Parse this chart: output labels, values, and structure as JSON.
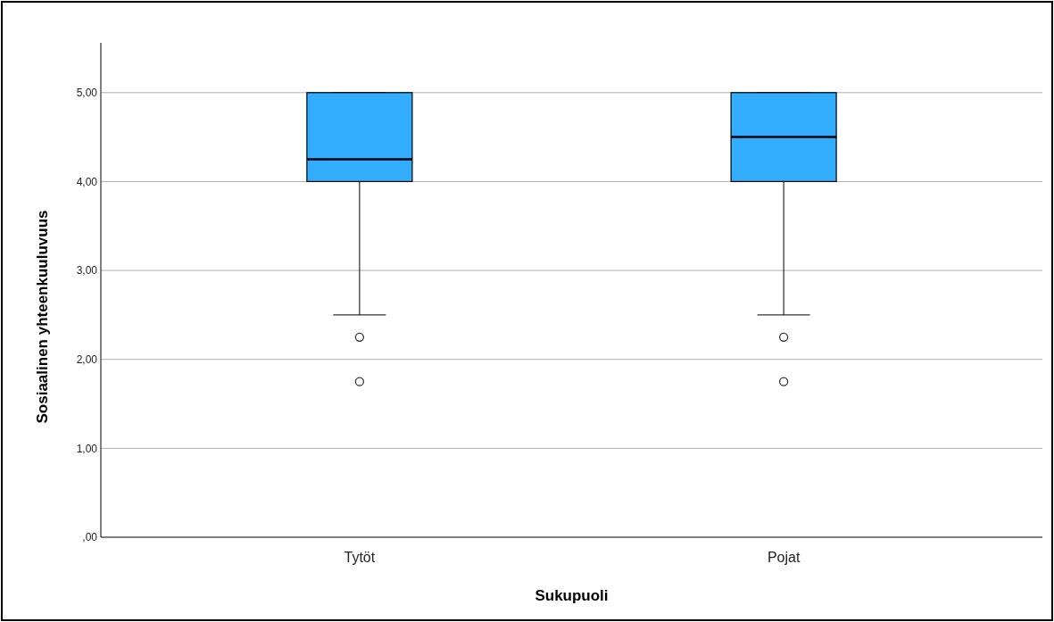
{
  "chart_data": {
    "type": "box",
    "xlabel": "Sukupuoli",
    "ylabel": "Sosiaalinen yhteenkuuluvuus",
    "categories": [
      "Tytöt",
      "Pojat"
    ],
    "color": "#33adff",
    "boxes": [
      {
        "low": 2.5,
        "q1": 4,
        "median": 4.25,
        "q3": 5,
        "high": 5,
        "outliers": [
          2.25,
          1.75
        ]
      },
      {
        "low": 2.5,
        "q1": 4,
        "median": 4.5,
        "q3": 5,
        "high": 5,
        "outliers": [
          2.25,
          1.75
        ]
      }
    ],
    "ylim": [
      0,
      5.56
    ],
    "yticks": [
      {
        "value": 0,
        "label": ",00"
      },
      {
        "value": 1,
        "label": "1,00"
      },
      {
        "value": 2,
        "label": "2,00"
      },
      {
        "value": 3,
        "label": "3,00"
      },
      {
        "value": 4,
        "label": "4,00"
      },
      {
        "value": 5,
        "label": "5,00"
      }
    ],
    "grid": "y"
  }
}
